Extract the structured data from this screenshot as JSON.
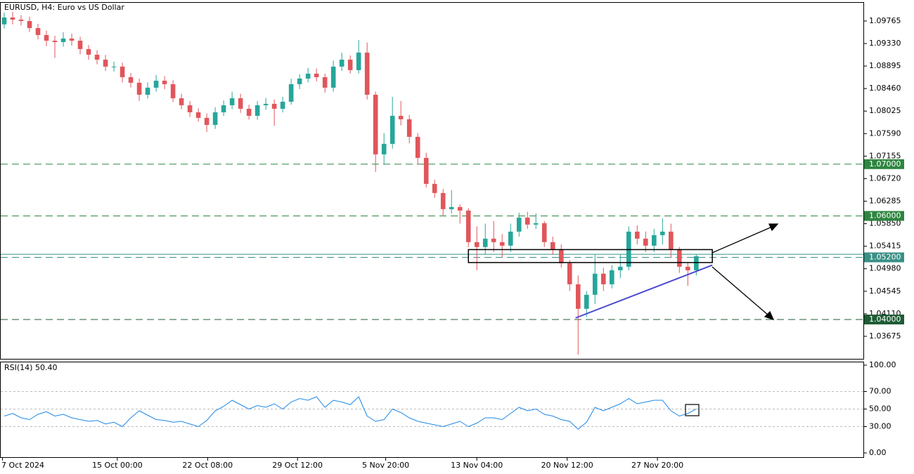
{
  "chart_data": {
    "type": "candlestick",
    "title": "EURUSD, H4:  Euro vs US Dollar",
    "up_color": "#26a69a",
    "down_color": "#e0565b",
    "open": [
      1.097,
      1.09833,
      1.09792,
      1.09765,
      1.09629,
      1.09494,
      1.09385,
      1.09358,
      1.09426,
      1.09385,
      1.09223,
      1.09114,
      1.09019,
      1.08884,
      1.08884,
      1.0868,
      1.08572,
      1.08341,
      1.08477,
      1.08612,
      1.08545,
      1.08273,
      1.08138,
      1.08002,
      1.07894,
      1.07758,
      1.08002,
      1.08138,
      1.08273,
      1.0807,
      1.07934,
      1.08138,
      1.08165,
      1.0807,
      1.08206,
      1.08545,
      1.08653,
      1.08748,
      1.0868,
      1.08477,
      1.08884,
      1.09019,
      1.08816,
      1.09155,
      1.08341,
      1.07189,
      1.07392,
      1.07934,
      1.07867,
      1.07528,
      1.07121,
      1.06619,
      1.06443,
      1.06131,
      1.06172,
      1.06104,
      1.05494,
      1.05399,
      1.05561,
      1.05494,
      1.05426,
      1.05697,
      1.05968,
      1.05833,
      1.0586,
      1.05494,
      1.05358,
      1.05087,
      1.0468,
      1.04206,
      1.04477,
      1.04884,
      1.0468,
      1.04951,
      1.05019,
      1.05697,
      1.05561,
      1.05426,
      1.05629,
      1.05697,
      1.05358,
      1.05019,
      1.04951
    ],
    "high": [
      1.0993,
      1.0994,
      1.0988,
      1.0985,
      1.0971,
      1.0958,
      1.0948,
      1.0955,
      1.0952,
      1.0946,
      1.093,
      1.092,
      1.0911,
      1.0898,
      1.0896,
      1.0876,
      1.0865,
      1.0858,
      1.0872,
      1.087,
      1.0862,
      1.0836,
      1.0822,
      1.0808,
      1.0798,
      1.081,
      1.0823,
      1.084,
      1.0836,
      1.0815,
      1.0822,
      1.0828,
      1.0825,
      1.083,
      1.0865,
      1.0874,
      1.0886,
      1.0885,
      1.0875,
      1.09,
      1.0915,
      1.091,
      1.094,
      1.0935,
      1.084,
      1.076,
      1.083,
      1.0822,
      1.0795,
      1.076,
      1.0722,
      1.067,
      1.0652,
      1.065,
      1.0622,
      1.0615,
      1.058,
      1.0585,
      1.059,
      1.0565,
      1.0585,
      1.0606,
      1.0608,
      1.0605,
      1.059,
      1.056,
      1.0545,
      1.0515,
      1.0485,
      1.0455,
      1.0525,
      1.05,
      1.0505,
      1.0525,
      1.058,
      1.0582,
      1.057,
      1.0575,
      1.0595,
      1.0585,
      1.054,
      1.051,
      1.0525
    ],
    "low": [
      1.0962,
      1.097,
      1.0968,
      1.0955,
      1.0941,
      1.0928,
      1.0905,
      1.0927,
      1.0929,
      1.0912,
      1.0902,
      1.0893,
      1.088,
      1.0879,
      1.0858,
      1.0848,
      1.0822,
      1.0827,
      1.084,
      1.0845,
      1.082,
      1.0806,
      1.0791,
      1.0782,
      1.0762,
      1.0768,
      1.0793,
      1.0806,
      1.0799,
      1.0786,
      1.0786,
      1.0805,
      1.0774,
      1.08,
      1.0815,
      1.0845,
      1.0858,
      1.086,
      1.0838,
      1.084,
      1.088,
      1.0875,
      1.0875,
      1.0825,
      1.0685,
      1.07,
      1.073,
      1.0775,
      1.074,
      1.07,
      1.0655,
      1.0635,
      1.06,
      1.0605,
      1.0585,
      1.054,
      1.0495,
      1.0525,
      1.053,
      1.052,
      1.053,
      1.056,
      1.0575,
      1.0575,
      1.054,
      1.0525,
      1.05,
      1.0455,
      1.0332,
      1.0405,
      1.043,
      1.0455,
      1.046,
      1.048,
      1.0495,
      1.0545,
      1.053,
      1.053,
      1.0545,
      1.052,
      1.049,
      1.0465,
      1.0485
    ],
    "close": [
      1.09833,
      1.09792,
      1.09765,
      1.09629,
      1.09494,
      1.09385,
      1.09358,
      1.09426,
      1.09385,
      1.09223,
      1.09114,
      1.09019,
      1.08884,
      1.08884,
      1.0868,
      1.08572,
      1.08341,
      1.08477,
      1.08612,
      1.08545,
      1.08273,
      1.08138,
      1.08002,
      1.07894,
      1.07758,
      1.08002,
      1.08138,
      1.08273,
      1.0807,
      1.07934,
      1.08138,
      1.08165,
      1.0807,
      1.08206,
      1.08545,
      1.08653,
      1.08748,
      1.0868,
      1.08477,
      1.08884,
      1.09019,
      1.08816,
      1.09155,
      1.08341,
      1.07189,
      1.07392,
      1.07934,
      1.07867,
      1.07528,
      1.07121,
      1.06619,
      1.06443,
      1.06131,
      1.06172,
      1.06104,
      1.05494,
      1.05399,
      1.05561,
      1.05494,
      1.05426,
      1.05697,
      1.05968,
      1.05833,
      1.0586,
      1.05494,
      1.05358,
      1.05087,
      1.0468,
      1.04206,
      1.04477,
      1.04884,
      1.0468,
      1.04951,
      1.05019,
      1.05697,
      1.05561,
      1.05426,
      1.05629,
      1.05697,
      1.05358,
      1.05019,
      1.04951,
      1.05222
    ],
    "xlim": [
      0,
      102.3
    ],
    "xticks": [
      {
        "value": 0.3,
        "label": "7 Oct 2024"
      },
      {
        "value": 13.9,
        "label": "15 Oct 00:00"
      },
      {
        "value": 24.6,
        "label": "22 Oct 08:00"
      },
      {
        "value": 35.25,
        "label": "29 Oct 12:00"
      },
      {
        "value": 45.7,
        "label": "5 Nov 20:00"
      },
      {
        "value": 56.5,
        "label": "13 Nov 04:00"
      },
      {
        "value": 67.2,
        "label": "20 Nov 12:00"
      },
      {
        "value": 77.9,
        "label": "27 Nov 20:00"
      }
    ],
    "ylim": [
      1.0324,
      1.1013
    ],
    "yticks": [
      1.09765,
      {
        "value": 1.0933,
        "label": "1.09330"
      },
      1.08895,
      {
        "value": 1.0846,
        "label": "1.08460"
      },
      1.08025,
      {
        "value": 1.0759,
        "label": "1.07590"
      },
      1.07155,
      {
        "value": 1.0672,
        "label": "1.06720"
      },
      1.06285,
      {
        "value": 1.0585,
        "label": "1.05850"
      },
      1.05415,
      {
        "value": 1.0498,
        "label": "1.04980"
      },
      1.04545,
      {
        "value": 1.0411,
        "label": "1.04110"
      },
      1.03675
    ],
    "levels": [
      {
        "value": 1.07,
        "label": "1.07000",
        "color": "#2e8540"
      },
      {
        "value": 1.06,
        "label": "1.06000",
        "color": "#2e8540"
      },
      {
        "value": 1.052,
        "label": "1.05200",
        "color": "#3a8f86"
      },
      {
        "value": 1.04,
        "label": "1.04000",
        "color": "#1f5c36"
      }
    ],
    "bid_line": 1.0526,
    "zone": {
      "x": [
        55.5,
        84.4
      ],
      "y": [
        1.051,
        1.0535
      ]
    },
    "trendline": {
      "x": [
        68.2,
        84.4
      ],
      "y": [
        1.0403,
        1.0505
      ],
      "color": "#4a4acf"
    },
    "rsi": {
      "label": "RSI(14) 50.40",
      "color": "#1e88e5",
      "values": [
        42,
        45,
        40,
        38,
        44,
        47,
        42,
        44,
        40,
        38,
        36,
        37,
        33,
        35,
        30,
        40,
        48,
        43,
        38,
        37,
        35,
        36,
        33,
        30,
        37,
        48,
        53,
        60,
        55,
        50,
        54,
        52,
        56,
        50,
        58,
        62,
        60,
        64,
        52,
        60,
        58,
        55,
        64,
        42,
        36,
        38,
        50,
        46,
        40,
        36,
        34,
        32,
        30,
        33,
        36,
        30,
        34,
        40,
        40,
        38,
        45,
        52,
        48,
        50,
        44,
        42,
        38,
        36,
        27,
        35,
        52,
        48,
        52,
        56,
        62,
        56,
        58,
        60,
        60,
        48,
        42,
        45,
        50
      ],
      "ylim": [
        -4.8,
        104
      ],
      "yticks": [
        {
          "value": 100,
          "label": "100.00"
        },
        {
          "value": 70,
          "label": "70.00"
        },
        {
          "value": 50,
          "label": "50.00"
        },
        {
          "value": 30,
          "label": "30.00"
        },
        {
          "value": 0,
          "label": "0.00"
        }
      ],
      "levels": [
        70,
        50,
        30
      ]
    }
  }
}
